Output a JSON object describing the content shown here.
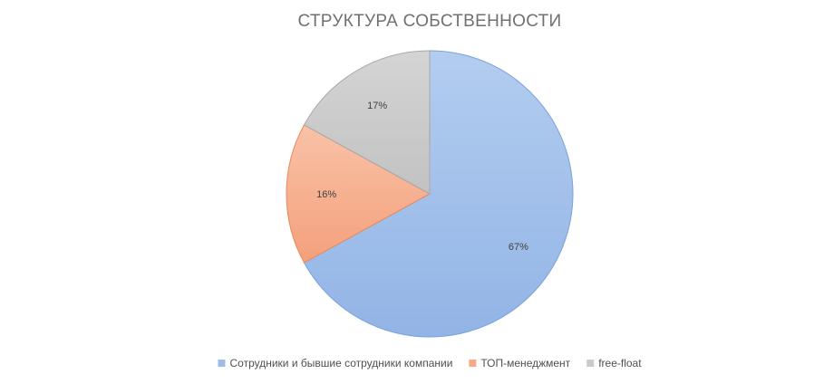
{
  "chart_data": {
    "type": "pie",
    "title": "СТРУКТУРА СОБСТВЕННОСТИ",
    "categories": [
      "Сотрудники и бывшие сотрудники компании",
      "ТОП-менеджмент",
      "free-float"
    ],
    "values": [
      67,
      16,
      17
    ],
    "data_labels": [
      "67%",
      "16%",
      "17%"
    ],
    "colors": [
      "#9dbde9",
      "#f6a986",
      "#c9c9c9"
    ],
    "legend_position": "bottom"
  }
}
